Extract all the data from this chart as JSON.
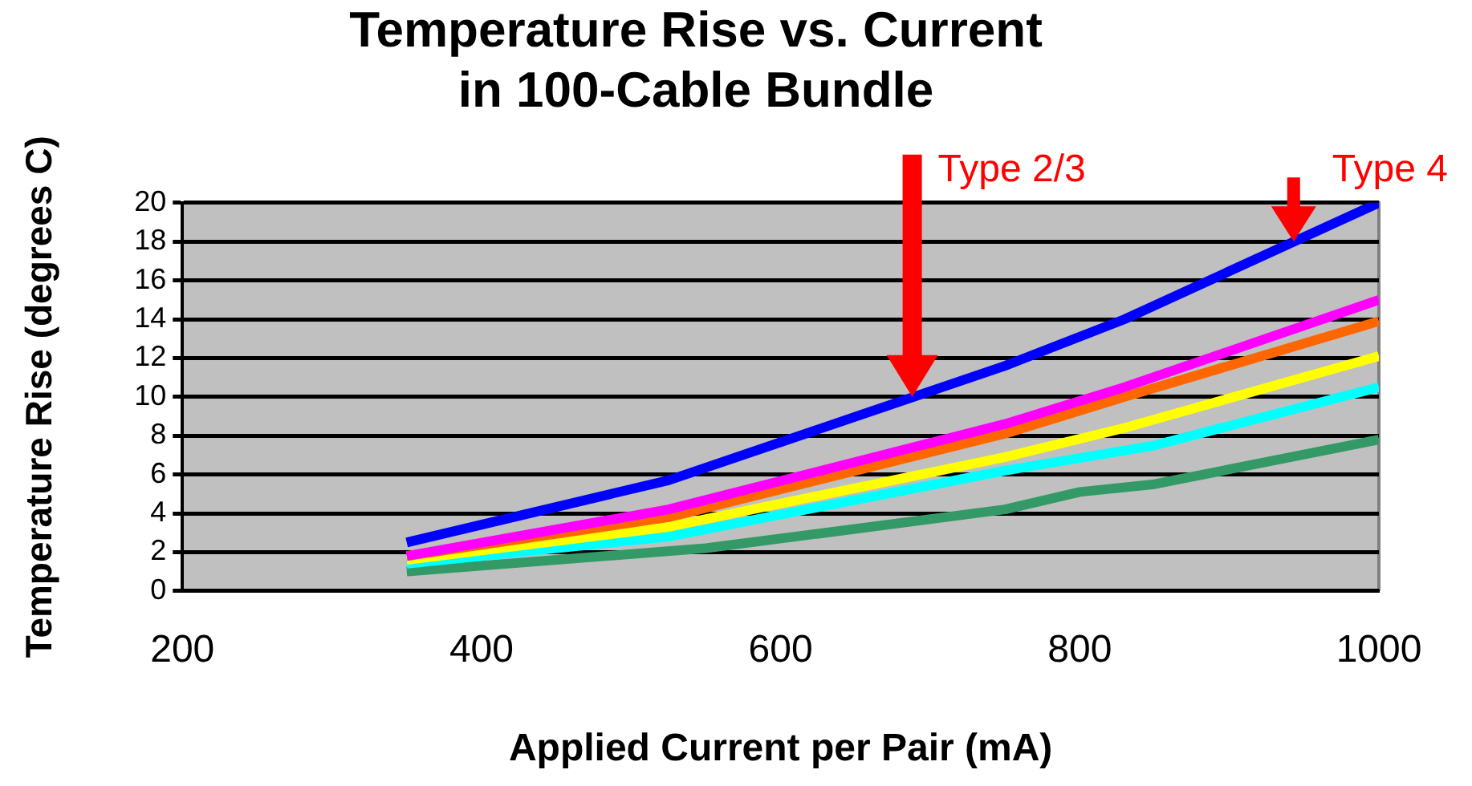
{
  "chart_data": {
    "type": "line",
    "title": "Temperature Rise vs. Current\nin 100-Cable Bundle",
    "xlabel": "Applied Current per Pair (mA)",
    "ylabel": "Temperature Rise (degrees C)",
    "x": [
      350,
      525,
      750,
      830,
      1000
    ],
    "series": [
      {
        "color": "#0000ff",
        "values": [
          2.5,
          5.7,
          11.6,
          14,
          20
        ]
      },
      {
        "color": "#ff00ff",
        "values": [
          1.8,
          4.2,
          8.6,
          10.5,
          15
        ]
      },
      {
        "color": "#ff6600",
        "values": [
          1.8,
          3.8,
          8.1,
          10,
          13.9
        ]
      },
      {
        "color": "#ffff00",
        "values": [
          1.6,
          3.3,
          6.9,
          8.4,
          12.1
        ]
      },
      {
        "color": "#00ffff",
        "x": [
          350,
          525,
          750,
          850,
          1000
        ],
        "values": [
          1.4,
          2.8,
          6.2,
          7.5,
          10.5
        ]
      },
      {
        "color": "#339966",
        "x": [
          350,
          550,
          750,
          800,
          850,
          1000
        ],
        "values": [
          1.0,
          2.2,
          4.2,
          5.1,
          5.5,
          7.8
        ]
      }
    ],
    "xlim": [
      200,
      1000
    ],
    "xticks": [
      200,
      400,
      600,
      800,
      1000
    ],
    "ylim": [
      0,
      20
    ],
    "yticks": [
      0,
      2,
      4,
      6,
      8,
      10,
      12,
      14,
      16,
      18,
      20
    ],
    "grid": "y",
    "legend": false,
    "marker": "none",
    "line_style": "solid",
    "annotations": [
      "Type 2/3",
      {
        "text": "Type 4",
        "x": 943,
        "y": 18
      }
    ]
  }
}
